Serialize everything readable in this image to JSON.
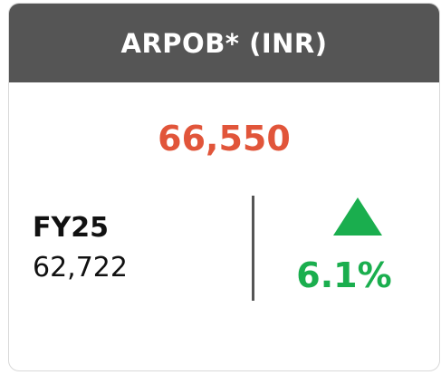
{
  "header": {
    "title": "ARPOB* (INR)"
  },
  "main_value": "66,550",
  "comparison": {
    "label": "FY25",
    "value": "62,722"
  },
  "change": {
    "value": "6.1%"
  }
}
